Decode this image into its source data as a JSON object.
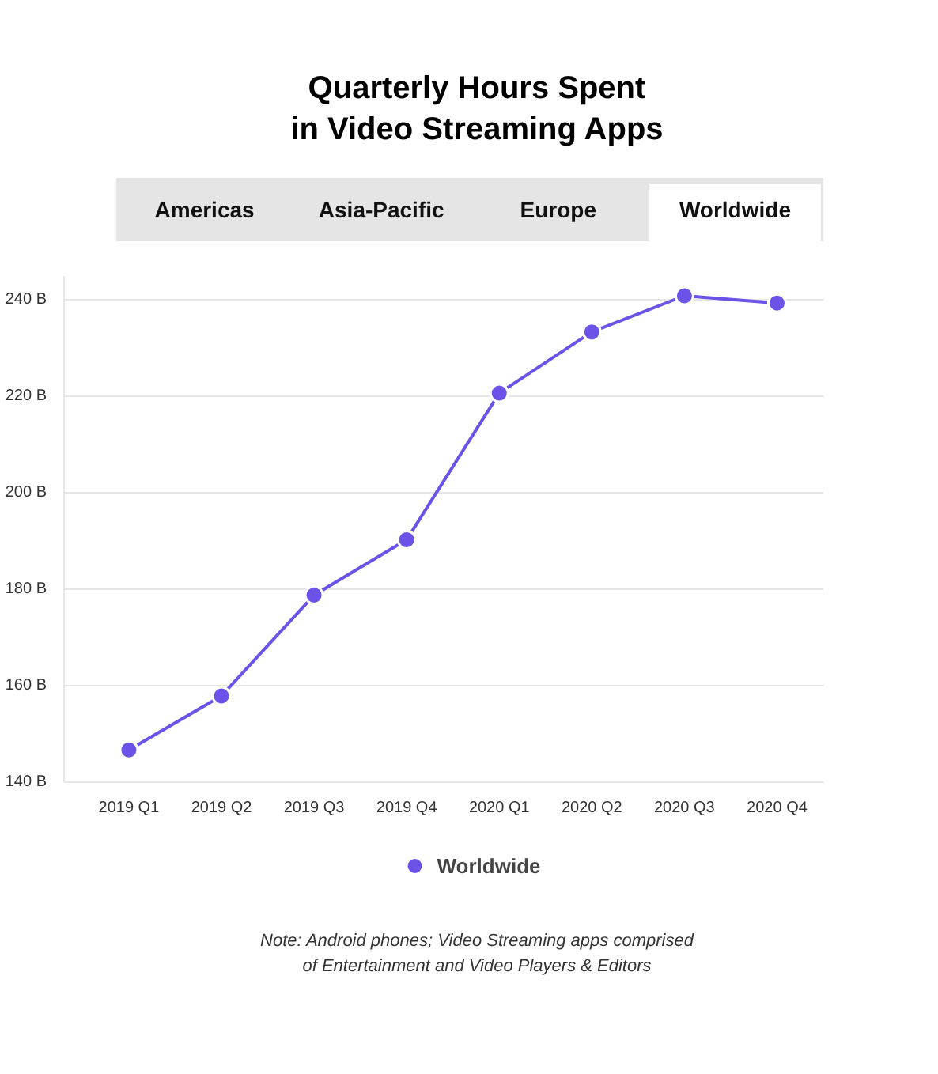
{
  "chart_data": {
    "type": "line",
    "title": "Quarterly Hours Spent\nin Video Streaming Apps",
    "categories": [
      "2019 Q1",
      "2019 Q2",
      "2019 Q3",
      "2019 Q4",
      "2020 Q1",
      "2020 Q2",
      "2020 Q3",
      "2020 Q4"
    ],
    "series": [
      {
        "name": "Worldwide",
        "color": "#6c52e6",
        "values": [
          146.7,
          157.9,
          178.8,
          190.3,
          220.7,
          233.4,
          240.9,
          239.4
        ]
      }
    ],
    "ylim": [
      140,
      245
    ],
    "yticks": [
      {
        "value": 140,
        "label": "140 B"
      },
      {
        "value": 160,
        "label": "160 B"
      },
      {
        "value": 180,
        "label": "180 B"
      },
      {
        "value": 200,
        "label": "200 B"
      },
      {
        "value": 220,
        "label": "220 B"
      },
      {
        "value": 240,
        "label": "240 B"
      }
    ],
    "grid": "y",
    "legend": "bottom",
    "marker": "circle",
    "line_style": "solid",
    "annotations": [
      "Americas",
      "Asia-Pacific",
      "Europe",
      "Worldwide",
      "Note: Android phones; Video Streaming apps comprised\nof Entertainment and Video Players & Editors"
    ]
  }
}
